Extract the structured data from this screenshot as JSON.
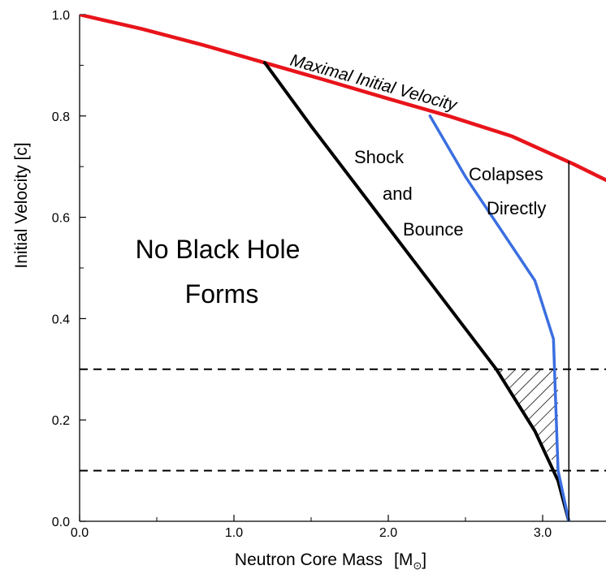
{
  "chart_data": {
    "type": "line",
    "xlabel": "Neutron Core Mass",
    "xlabel_unit": "[M",
    "xlabel_unit_symbol": "⊙",
    "xlabel_unit_close": "]",
    "ylabel": "Initial Velocity   [c]",
    "xlim": [
      0.0,
      3.5
    ],
    "ylim": [
      0.0,
      1.0
    ],
    "x_ticks": [
      "0.0",
      "1.0",
      "2.0",
      "3.0"
    ],
    "x_tick_values": [
      0.0,
      1.0,
      2.0,
      3.0
    ],
    "y_ticks": [
      "0.0",
      "0.2",
      "0.4",
      "0.6",
      "0.8",
      "1.0"
    ],
    "y_tick_values": [
      0.0,
      0.2,
      0.4,
      0.6,
      0.8,
      1.0
    ],
    "grid": false,
    "series": [
      {
        "name": "Maximal Initial Velocity",
        "color": "#e8141b",
        "x": [
          0.0,
          0.4,
          0.8,
          1.2,
          1.6,
          2.0,
          2.4,
          2.8,
          3.2,
          3.5
        ],
        "y": [
          1.0,
          0.972,
          0.94,
          0.905,
          0.87,
          0.834,
          0.799,
          0.76,
          0.705,
          0.66
        ]
      },
      {
        "color": "#000000",
        "x": [
          1.2,
          1.5,
          1.9,
          2.35,
          2.7,
          2.95,
          3.1,
          3.17
        ],
        "y": [
          0.905,
          0.78,
          0.62,
          0.44,
          0.3,
          0.178,
          0.08,
          0.0
        ]
      },
      {
        "color": "#3b6fe0",
        "x": [
          2.27,
          2.5,
          2.95,
          3.07,
          3.1,
          3.17
        ],
        "y": [
          0.8,
          0.68,
          0.475,
          0.36,
          0.1,
          0.0
        ]
      },
      {
        "color": "#000000",
        "x": [
          3.17,
          3.17
        ],
        "y": [
          0.0,
          0.71
        ]
      }
    ],
    "reference_lines": [
      {
        "orientation": "horizontal",
        "y": 0.3,
        "style": "dashed",
        "color": "#000000"
      },
      {
        "orientation": "horizontal",
        "y": 0.1,
        "style": "dashed",
        "color": "#000000"
      }
    ],
    "hatched_region": {
      "x": [
        2.7,
        3.1,
        3.1,
        2.95
      ],
      "y": [
        0.3,
        0.3,
        0.1,
        0.178
      ]
    },
    "annotations": {
      "curve_label": "Maximal Initial Velocity",
      "shock": [
        "Shock",
        "and",
        "Bounce"
      ],
      "collapse": [
        "Colapses",
        "Directly"
      ],
      "no_bh": [
        "No Black Hole",
        "Forms"
      ]
    }
  }
}
